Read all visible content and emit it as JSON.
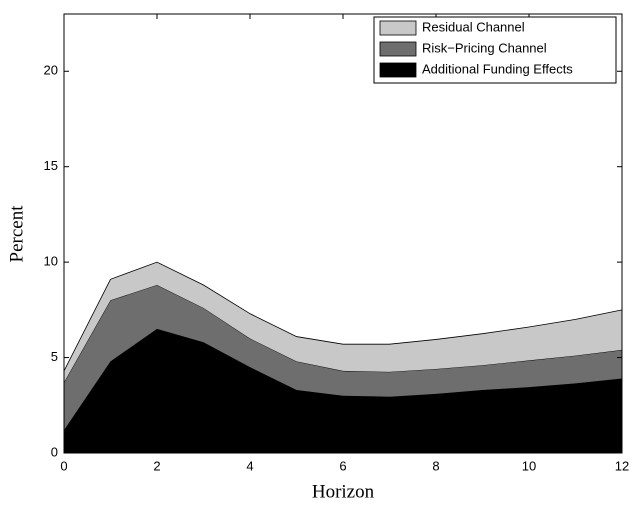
{
  "chart_data": {
    "type": "stacked_area",
    "x_label": "Horizon",
    "y_label": "Percent",
    "x": [
      0,
      1,
      2,
      3,
      4,
      5,
      6,
      7,
      8,
      9,
      10,
      11,
      12
    ],
    "series": [
      {
        "name": "Additional Funding Effects",
        "color": "#000000",
        "values": [
          1.2,
          4.8,
          6.5,
          5.8,
          4.5,
          3.3,
          3.0,
          2.95,
          3.1,
          3.3,
          3.45,
          3.65,
          3.9
        ]
      },
      {
        "name": "Risk−Pricing Channel",
        "color": "#6e6e6e",
        "values": [
          2.5,
          3.2,
          2.3,
          1.8,
          1.5,
          1.5,
          1.3,
          1.3,
          1.3,
          1.3,
          1.4,
          1.45,
          1.5
        ]
      },
      {
        "name": "Residual Channel",
        "color": "#c8c8c8",
        "values": [
          0.6,
          1.1,
          1.2,
          1.2,
          1.3,
          1.3,
          1.4,
          1.45,
          1.55,
          1.65,
          1.75,
          1.9,
          2.1
        ]
      }
    ],
    "xlim": [
      0,
      12
    ],
    "xticks": [
      0,
      2,
      4,
      6,
      8,
      10,
      12
    ],
    "ylim": [
      0,
      23
    ],
    "yticks": [
      0,
      5,
      10,
      15,
      20
    ],
    "legend": "top-right"
  }
}
